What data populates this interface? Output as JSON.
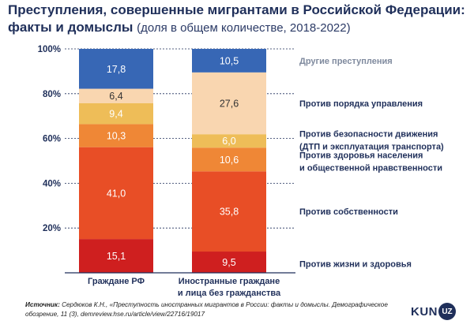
{
  "title_main": "Преступления, совершенные мигрантами в Российской Федерации: факты и домыслы",
  "title_sub": "(доля в общем количестве, 2018-2022)",
  "source_label": "Источник:",
  "source_text": "Сердюков К.Н., «Преступность иностранных мигрантов в России: факты и домыслы. Демографическое обозрение, 11 (3), demreview.hse.ru/article/view/22716/19017",
  "logo_kun": "KUN",
  "logo_uz": "UZ",
  "chart_data": {
    "type": "bar",
    "stacked": true,
    "categories": [
      [
        "Граждане РФ"
      ],
      [
        "Иностранные граждане",
        "и лица без гражданства"
      ]
    ],
    "ylim": [
      0,
      100
    ],
    "yticks": [
      20,
      40,
      60,
      80,
      100
    ],
    "ytick_labels": [
      "20%",
      "40%",
      "60%",
      "80%",
      "100%"
    ],
    "grid": true,
    "series": [
      {
        "name": [
          "Против жизни и здоровья"
        ],
        "color": "#cf1f1f",
        "values": [
          15.1,
          9.5
        ],
        "labels": [
          "15,1",
          "9,5"
        ]
      },
      {
        "name": [
          "Против собственности"
        ],
        "color": "#e84e26",
        "values": [
          41.0,
          35.8
        ],
        "labels": [
          "41,0",
          "35,8"
        ]
      },
      {
        "name": [
          "Против здоровья населения",
          "и общественной нравственности"
        ],
        "color": "#ef8736",
        "values": [
          10.3,
          10.6
        ],
        "labels": [
          "10,3",
          "10,6"
        ]
      },
      {
        "name": [
          "Против безопасности движения",
          "(ДТП и эксплуатация транспорта)"
        ],
        "color": "#eebd58",
        "values": [
          9.4,
          6.0
        ],
        "labels": [
          "9,4",
          "6,0"
        ]
      },
      {
        "name": [
          "Против порядка управления"
        ],
        "color": "#f9d6b0",
        "values": [
          6.4,
          27.6
        ],
        "labels": [
          "6,4",
          "27,6"
        ]
      },
      {
        "name": [
          "Другие преступления"
        ],
        "color": "#3767b5",
        "values": [
          17.8,
          10.5
        ],
        "labels": [
          "17,8",
          "10,5"
        ]
      }
    ]
  }
}
